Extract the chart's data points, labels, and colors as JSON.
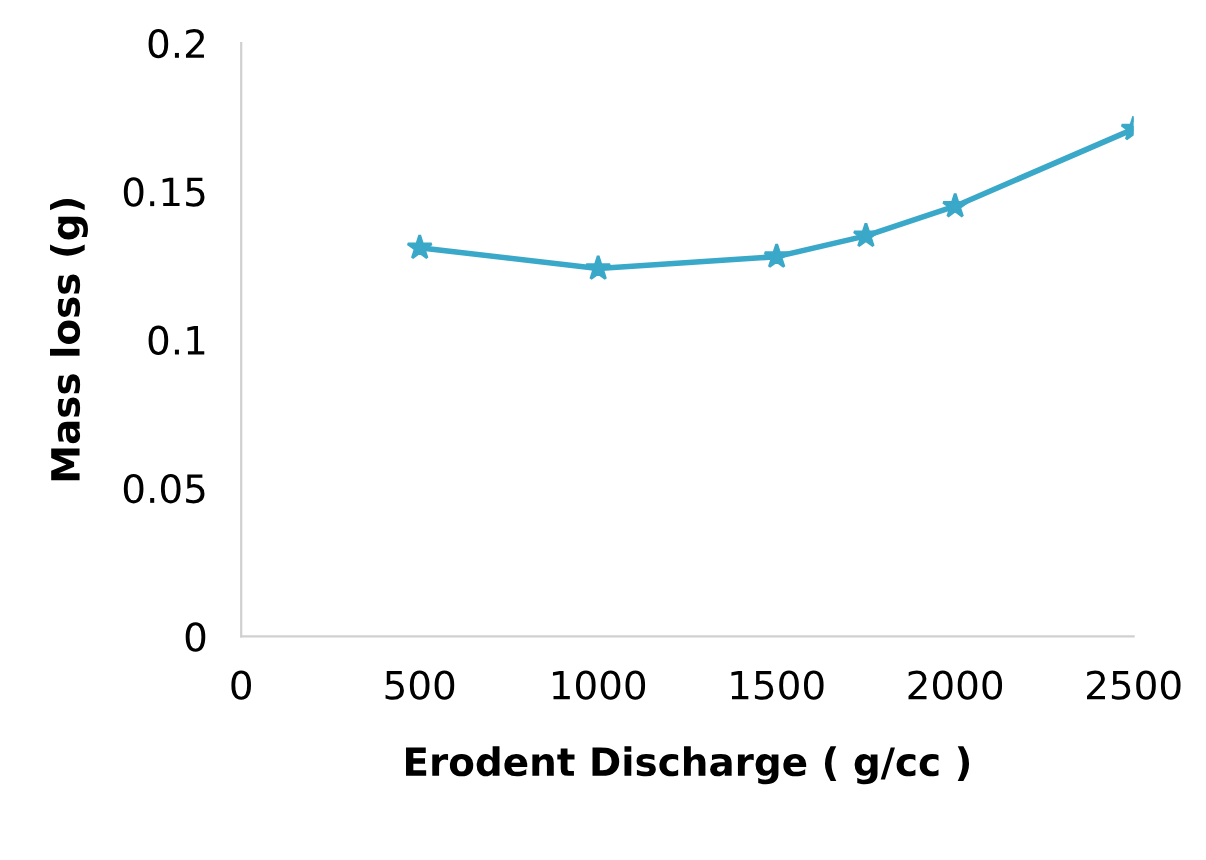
{
  "chart_data": {
    "type": "line",
    "xlabel": "Erodent Discharge ( g/cc )",
    "ylabel": "Mass loss (g)",
    "x": [
      500,
      1000,
      1500,
      1750,
      2000,
      2500
    ],
    "series": [
      {
        "color": "#3aa8c8",
        "values": [
          0.131,
          0.124,
          0.128,
          0.135,
          0.145,
          0.171
        ]
      }
    ],
    "xlim": [
      0,
      2500
    ],
    "xticks": [
      0,
      500,
      1000,
      1500,
      2000,
      2500
    ],
    "ylim": [
      0,
      0.2
    ],
    "yticks": [
      0,
      0.05,
      0.1,
      0.15,
      0.2
    ],
    "marker": "star",
    "line_style": "solid",
    "grid": false,
    "legend": false
  }
}
